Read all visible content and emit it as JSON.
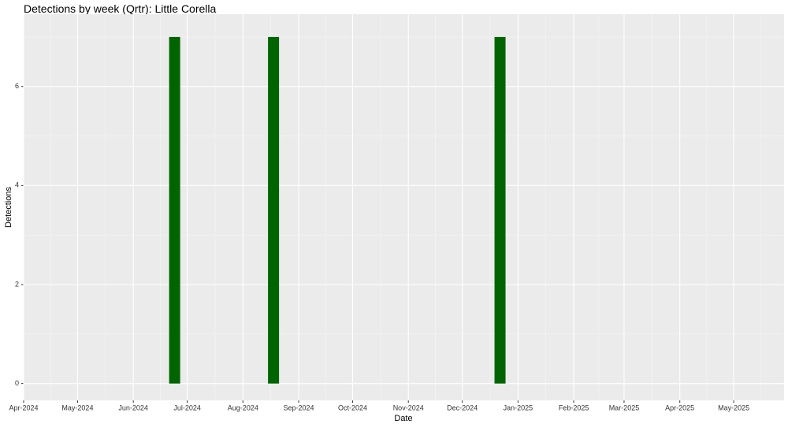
{
  "chart_data": {
    "type": "bar",
    "title": "Detections by week (Qrtr): Little Corella",
    "x_label": "Date",
    "y_label": "Detections",
    "x": [
      "2024-06-24",
      "2024-08-18",
      "2024-12-22"
    ],
    "values": [
      7,
      7,
      7
    ],
    "color": "#006400",
    "xlim": [
      "2024-04-01",
      "2025-05-29"
    ],
    "xticks": [
      {
        "value": "2024-04-01",
        "label": "Apr-2024"
      },
      {
        "value": "2024-05-01",
        "label": "May-2024"
      },
      {
        "value": "2024-06-01",
        "label": "Jun-2024"
      },
      {
        "value": "2024-07-01",
        "label": "Jul-2024"
      },
      {
        "value": "2024-08-01",
        "label": "Aug-2024"
      },
      {
        "value": "2024-09-01",
        "label": "Sep-2024"
      },
      {
        "value": "2024-10-01",
        "label": "Oct-2024"
      },
      {
        "value": "2024-11-01",
        "label": "Nov-2024"
      },
      {
        "value": "2024-12-01",
        "label": "Dec-2024"
      },
      {
        "value": "2025-01-01",
        "label": "Jan-2025"
      },
      {
        "value": "2025-02-01",
        "label": "Feb-2025"
      },
      {
        "value": "2025-03-01",
        "label": "Mar-2025"
      },
      {
        "value": "2025-04-01",
        "label": "Apr-2025"
      },
      {
        "value": "2025-05-01",
        "label": "May-2025"
      }
    ],
    "ylim": [
      -0.34,
      7.46
    ],
    "yticks": [
      0,
      2,
      4,
      6
    ],
    "grid": true
  }
}
